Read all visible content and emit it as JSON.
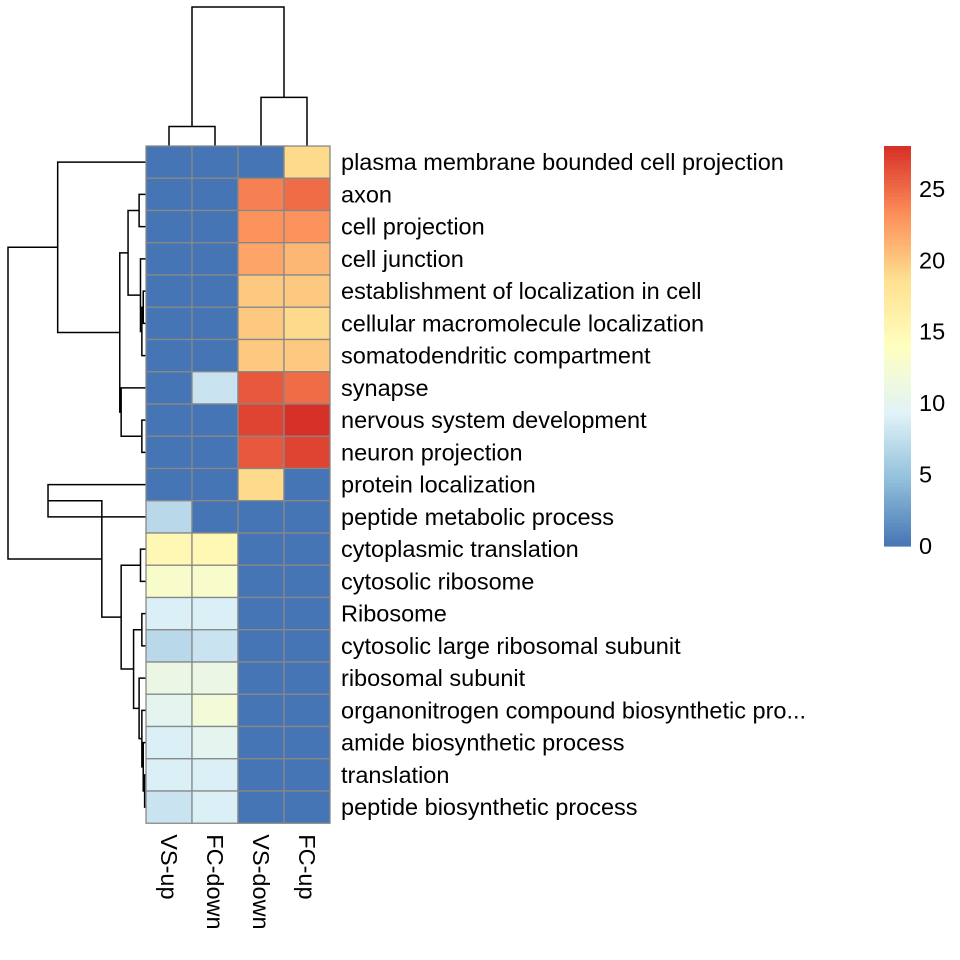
{
  "chart_data": {
    "type": "heatmap",
    "title": "",
    "columns": [
      "VS-up",
      "FC-down",
      "VS-down",
      "FC-up"
    ],
    "rows": [
      "plasma membrane bounded cell projection",
      "axon",
      "cell projection",
      "cell junction",
      "establishment of localization in cell",
      "cellular macromolecule localization",
      "somatodendritic compartment",
      "synapse",
      "nervous system development",
      "neuron projection",
      "protein localization",
      "peptide metabolic process",
      "cytoplasmic translation",
      "cytosolic ribosome",
      "Ribosome",
      "cytosolic large ribosomal subunit",
      "ribosomal subunit",
      "organonitrogen compound biosynthetic pro...",
      "amide biosynthetic process",
      "translation",
      "peptide biosynthetic process"
    ],
    "values": [
      [
        0,
        0,
        0,
        19
      ],
      [
        0,
        0,
        24,
        25
      ],
      [
        0,
        0,
        23,
        23
      ],
      [
        0,
        0,
        22,
        21
      ],
      [
        0,
        0,
        20,
        20
      ],
      [
        0,
        0,
        20,
        19
      ],
      [
        0,
        0,
        20,
        20
      ],
      [
        0,
        8,
        26,
        25
      ],
      [
        0,
        0,
        27,
        28
      ],
      [
        0,
        0,
        26,
        27
      ],
      [
        0,
        0,
        19,
        0
      ],
      [
        7,
        0,
        0,
        0
      ],
      [
        15,
        15,
        0,
        0
      ],
      [
        13,
        13,
        0,
        0
      ],
      [
        9,
        9,
        0,
        0
      ],
      [
        7,
        8,
        0,
        0
      ],
      [
        11,
        11,
        0,
        0
      ],
      [
        10,
        12,
        0,
        0
      ],
      [
        9,
        10,
        0,
        0
      ],
      [
        9,
        9,
        0,
        0
      ],
      [
        8,
        9,
        0,
        0
      ]
    ],
    "color_scale": {
      "min": 0,
      "max": 28,
      "ticks": [
        0,
        5,
        10,
        15,
        20,
        25
      ],
      "colors": [
        "#4575b4",
        "#91bfdb",
        "#e0f3f8",
        "#ffffbf",
        "#fee090",
        "#fc8d59",
        "#d73027"
      ]
    },
    "cell_border": "#888888",
    "legend": "right",
    "row_dendrogram": true,
    "column_dendrogram": true
  }
}
